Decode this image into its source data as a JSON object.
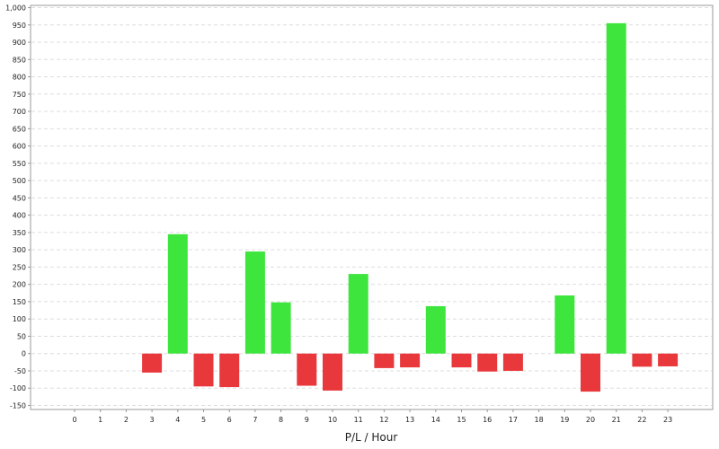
{
  "chart_data": {
    "type": "bar",
    "title": "",
    "xlabel": "P/L / Hour",
    "ylabel": "",
    "categories": [
      "0",
      "1",
      "2",
      "3",
      "4",
      "5",
      "6",
      "7",
      "8",
      "9",
      "10",
      "11",
      "12",
      "13",
      "14",
      "15",
      "16",
      "17",
      "18",
      "19",
      "20",
      "21",
      "22",
      "23"
    ],
    "values": [
      0,
      0,
      0,
      -55,
      345,
      -95,
      -97,
      295,
      148,
      -93,
      -107,
      230,
      -42,
      -40,
      137,
      -40,
      -52,
      -50,
      0,
      168,
      -110,
      955,
      -38,
      -37
    ],
    "ylim": [
      -150,
      1000
    ],
    "yticks": [
      1000,
      950,
      900,
      850,
      800,
      750,
      700,
      650,
      600,
      550,
      500,
      450,
      400,
      350,
      300,
      250,
      200,
      150,
      100,
      50,
      0,
      -50,
      -100,
      -150
    ],
    "ytick_labels": [
      "1,000",
      "950",
      "900",
      "850",
      "800",
      "750",
      "700",
      "650",
      "600",
      "550",
      "500",
      "450",
      "400",
      "350",
      "300",
      "250",
      "200",
      "150",
      "100",
      "50",
      "0",
      "-50",
      "-100",
      "-150"
    ],
    "grid": true,
    "legend": "none",
    "colors": {
      "positive": "#3de53d",
      "negative": "#e8383c",
      "grid": "#dddddd",
      "axis": "#999999"
    }
  }
}
